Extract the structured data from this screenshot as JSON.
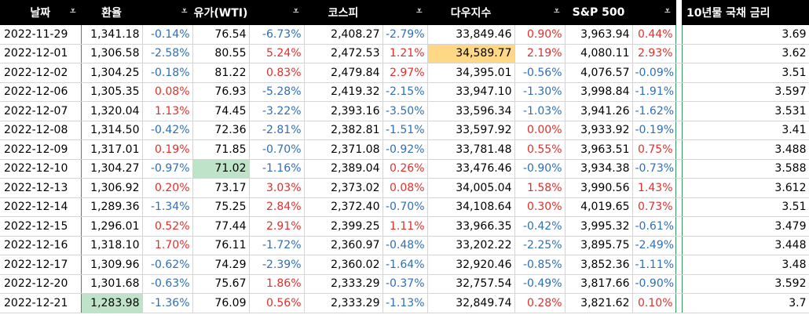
{
  "headers": [
    "날짜",
    "환율",
    "",
    "유가(WTI)",
    "",
    "코스피",
    "",
    "다우지수",
    "",
    "S&P 500",
    "",
    "",
    "10년물 국채 금리"
  ],
  "rows": [
    {
      "date": "2022-11-29",
      "fx": "1,341.18",
      "fx_p": "-0.14%",
      "oil": "76.54",
      "oil_p": "-6.73%",
      "kospi": "2,408.27",
      "kospi_p": "-2.79%",
      "dow": "33,849.46",
      "dow_p": "0.90%",
      "sp": "3,963.94",
      "sp_p": "0.44%",
      "bond": "3.69"
    },
    {
      "date": "2022-12-01",
      "fx": "1,306.58",
      "fx_p": "-2.58%",
      "oil": "80.55",
      "oil_p": "5.24%",
      "kospi": "2,472.53",
      "kospi_p": "1.21%",
      "dow": "34,589.77",
      "dow_p": "2.19%",
      "sp": "4,080.11",
      "sp_p": "2.93%",
      "bond": "3.62"
    },
    {
      "date": "2022-12-02",
      "fx": "1,304.25",
      "fx_p": "-0.18%",
      "oil": "81.22",
      "oil_p": "0.83%",
      "kospi": "2,479.84",
      "kospi_p": "2.97%",
      "dow": "34,395.01",
      "dow_p": "-0.56%",
      "sp": "4,076.57",
      "sp_p": "-0.09%",
      "bond": "3.51"
    },
    {
      "date": "2022-12-06",
      "fx": "1,305.35",
      "fx_p": "0.08%",
      "oil": "76.93",
      "oil_p": "-5.28%",
      "kospi": "2,419.32",
      "kospi_p": "-2.15%",
      "dow": "33,947.10",
      "dow_p": "-1.30%",
      "sp": "3,998.84",
      "sp_p": "-1.91%",
      "bond": "3.597"
    },
    {
      "date": "2022-12-07",
      "fx": "1,320.04",
      "fx_p": "1.13%",
      "oil": "74.45",
      "oil_p": "-3.22%",
      "kospi": "2,393.16",
      "kospi_p": "-3.50%",
      "dow": "33,596.34",
      "dow_p": "-1.03%",
      "sp": "3,941.26",
      "sp_p": "-1.62%",
      "bond": "3.531"
    },
    {
      "date": "2022-12-08",
      "fx": "1,314.50",
      "fx_p": "-0.42%",
      "oil": "72.36",
      "oil_p": "-2.81%",
      "kospi": "2,382.81",
      "kospi_p": "-1.51%",
      "dow": "33,597.92",
      "dow_p": "0.00%",
      "sp": "3,933.92",
      "sp_p": "-0.19%",
      "bond": "3.41"
    },
    {
      "date": "2022-12-09",
      "fx": "1,317.01",
      "fx_p": "0.19%",
      "oil": "71.85",
      "oil_p": "-0.70%",
      "kospi": "2,371.08",
      "kospi_p": "-0.92%",
      "dow": "33,781.48",
      "dow_p": "0.55%",
      "sp": "3,963.51",
      "sp_p": "0.75%",
      "bond": "3.488"
    },
    {
      "date": "2022-12-10",
      "fx": "1,304.27",
      "fx_p": "-0.97%",
      "oil": "71.02",
      "oil_p": "-1.16%",
      "kospi": "2,389.04",
      "kospi_p": "0.26%",
      "dow": "33,476.46",
      "dow_p": "-0.90%",
      "sp": "3,934.38",
      "sp_p": "-0.73%",
      "bond": "3.588"
    },
    {
      "date": "2022-12-13",
      "fx": "1,306.92",
      "fx_p": "0.20%",
      "oil": "73.17",
      "oil_p": "3.03%",
      "kospi": "2,373.02",
      "kospi_p": "0.08%",
      "dow": "34,005.04",
      "dow_p": "1.58%",
      "sp": "3,990.56",
      "sp_p": "1.43%",
      "bond": "3.612"
    },
    {
      "date": "2022-12-14",
      "fx": "1,289.36",
      "fx_p": "-1.34%",
      "oil": "75.25",
      "oil_p": "2.84%",
      "kospi": "2,372.40",
      "kospi_p": "-0.70%",
      "dow": "34,108.64",
      "dow_p": "0.30%",
      "sp": "4,019.65",
      "sp_p": "0.73%",
      "bond": "3.51"
    },
    {
      "date": "2022-12-15",
      "fx": "1,296.01",
      "fx_p": "0.52%",
      "oil": "77.44",
      "oil_p": "2.91%",
      "kospi": "2,399.25",
      "kospi_p": "1.11%",
      "dow": "33,966.35",
      "dow_p": "-0.42%",
      "sp": "3,995.32",
      "sp_p": "-0.61%",
      "bond": "3.479"
    },
    {
      "date": "2022-12-16",
      "fx": "1,318.10",
      "fx_p": "1.70%",
      "oil": "76.11",
      "oil_p": "-1.72%",
      "kospi": "2,360.97",
      "kospi_p": "-0.48%",
      "dow": "33,202.22",
      "dow_p": "-2.25%",
      "sp": "3,895.75",
      "sp_p": "-2.49%",
      "bond": "3.448"
    },
    {
      "date": "2022-12-17",
      "fx": "1,309.96",
      "fx_p": "-0.62%",
      "oil": "74.29",
      "oil_p": "-2.39%",
      "kospi": "2,360.02",
      "kospi_p": "-1.64%",
      "dow": "32,920.46",
      "dow_p": "-0.85%",
      "sp": "3,852.36",
      "sp_p": "-1.11%",
      "bond": "3.48"
    },
    {
      "date": "2022-12-20",
      "fx": "1,301.68",
      "fx_p": "-0.63%",
      "oil": "75.67",
      "oil_p": "1.86%",
      "kospi": "2,333.29",
      "kospi_p": "-0.37%",
      "dow": "32,757.54",
      "dow_p": "-0.49%",
      "sp": "3,817.66",
      "sp_p": "-0.90%",
      "bond": "3.592"
    },
    {
      "date": "2022-12-21",
      "fx": "1,283.98",
      "fx_p": "-1.36%",
      "oil": "76.09",
      "oil_p": "0.56%",
      "kospi": "2,333.29",
      "kospi_p": "-1.13%",
      "dow": "32,849.74",
      "dow_p": "0.28%",
      "sp": "3,821.62",
      "sp_p": "0.10%",
      "bond": "3.7"
    }
  ],
  "highlights": [
    {
      "row": 1,
      "col": "dow",
      "color": "#ffd886"
    },
    {
      "row": 7,
      "col": "oil",
      "color": "#bfe3c8"
    },
    {
      "row": 14,
      "col": "fx",
      "color": "#bfe3c8"
    }
  ],
  "colors": {
    "positive": "#e0302b",
    "negative": "#2e6fb7",
    "header_bg": "#000000",
    "header_fg": "#ffffff"
  },
  "filter_icon": "filter-dropdown-icon"
}
